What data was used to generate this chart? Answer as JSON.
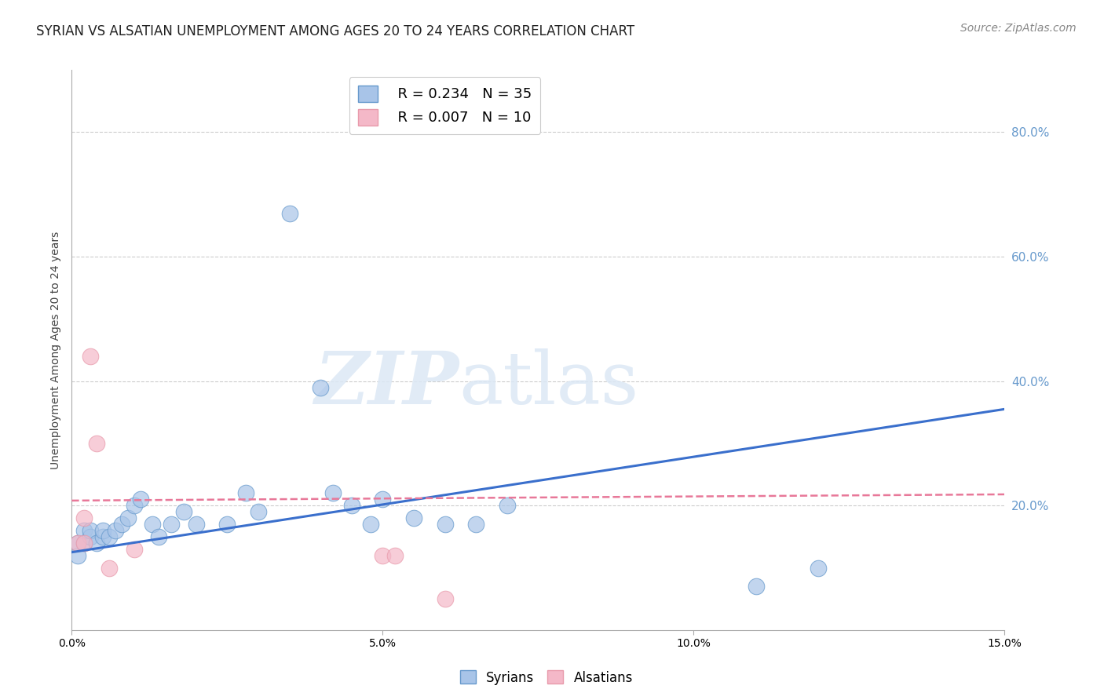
{
  "title": "SYRIAN VS ALSATIAN UNEMPLOYMENT AMONG AGES 20 TO 24 YEARS CORRELATION CHART",
  "source": "Source: ZipAtlas.com",
  "ylabel": "Unemployment Among Ages 20 to 24 years",
  "xlim": [
    0.0,
    0.15
  ],
  "ylim": [
    0.0,
    0.9
  ],
  "xticks": [
    0.0,
    0.05,
    0.1,
    0.15
  ],
  "xtick_labels": [
    "0.0%",
    "5.0%",
    "10.0%",
    "15.0%"
  ],
  "ytick_vals": [
    0.2,
    0.4,
    0.6,
    0.8
  ],
  "ytick_labels": [
    "20.0%",
    "40.0%",
    "60.0%",
    "80.0%"
  ],
  "syrian_color": "#a8c4e8",
  "alsatian_color": "#f4b8c8",
  "syrian_edge_color": "#6699cc",
  "alsatian_edge_color": "#e89aab",
  "syrian_line_color": "#3a6fcc",
  "alsatian_line_color": "#e87899",
  "background_color": "#ffffff",
  "watermark_zip": "ZIP",
  "watermark_atlas": "atlas",
  "grid_color": "#cccccc",
  "right_tick_color": "#6699cc",
  "legend_r_syrian": "R = 0.234",
  "legend_n_syrian": "N = 35",
  "legend_r_alsatian": "R = 0.007",
  "legend_n_alsatian": "N = 10",
  "syrians_x": [
    0.001,
    0.001,
    0.002,
    0.002,
    0.003,
    0.003,
    0.004,
    0.005,
    0.005,
    0.006,
    0.007,
    0.008,
    0.009,
    0.01,
    0.011,
    0.013,
    0.014,
    0.016,
    0.018,
    0.02,
    0.025,
    0.028,
    0.03,
    0.035,
    0.04,
    0.042,
    0.045,
    0.048,
    0.05,
    0.055,
    0.06,
    0.065,
    0.07,
    0.11,
    0.12
  ],
  "syrians_y": [
    0.12,
    0.14,
    0.14,
    0.16,
    0.15,
    0.16,
    0.14,
    0.15,
    0.16,
    0.15,
    0.16,
    0.17,
    0.18,
    0.2,
    0.21,
    0.17,
    0.15,
    0.17,
    0.19,
    0.17,
    0.17,
    0.22,
    0.19,
    0.67,
    0.39,
    0.22,
    0.2,
    0.17,
    0.21,
    0.18,
    0.17,
    0.17,
    0.2,
    0.07,
    0.1
  ],
  "alsatians_x": [
    0.001,
    0.002,
    0.002,
    0.003,
    0.004,
    0.006,
    0.01,
    0.05,
    0.052,
    0.06
  ],
  "alsatians_y": [
    0.14,
    0.14,
    0.18,
    0.44,
    0.3,
    0.1,
    0.13,
    0.12,
    0.12,
    0.05
  ],
  "syrian_trendline_x": [
    0.0,
    0.15
  ],
  "syrian_trendline_y": [
    0.125,
    0.355
  ],
  "alsatian_trendline_x": [
    0.0,
    0.15
  ],
  "alsatian_trendline_y": [
    0.208,
    0.218
  ],
  "title_fontsize": 12,
  "axis_label_fontsize": 10,
  "tick_fontsize": 10,
  "legend_fontsize": 12,
  "source_fontsize": 10
}
